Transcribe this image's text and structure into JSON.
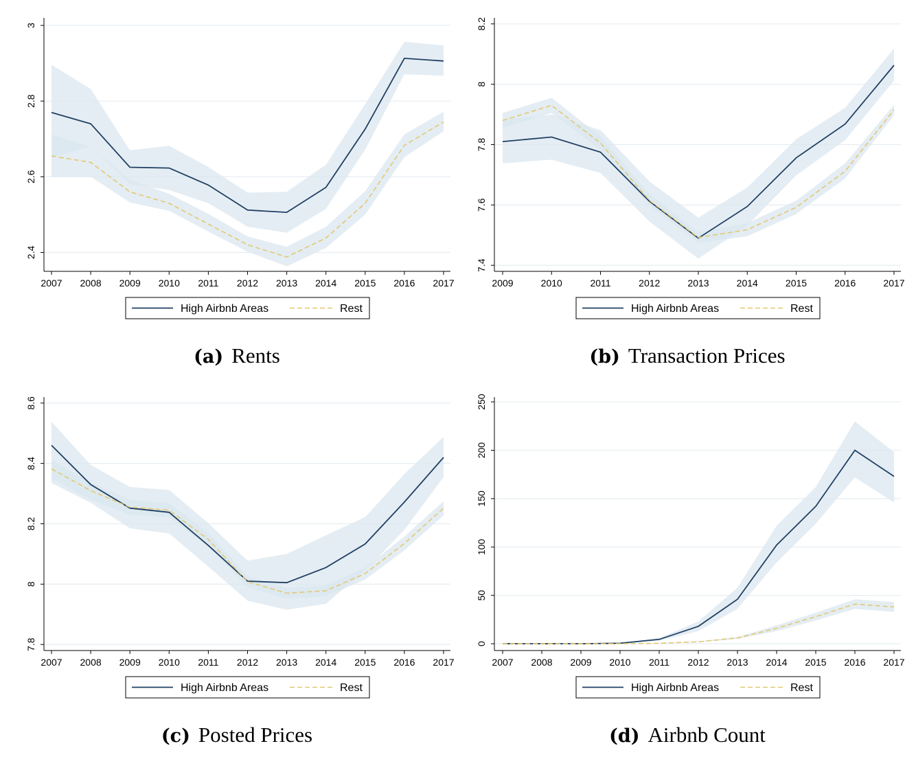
{
  "legend": {
    "high_label": "High Airbnb Areas",
    "rest_label": "Rest"
  },
  "colors": {
    "high": "#1f3f63",
    "rest": "#e3c86e",
    "band": "#dbe7ef",
    "grid": "#e6edf2"
  },
  "chart_data": [
    {
      "type": "line",
      "caption_letter": "(a)",
      "title": "Rents",
      "xlabel": "",
      "ylabel": "",
      "x": [
        "2007",
        "2008",
        "2009",
        "2010",
        "2011",
        "2012",
        "2013",
        "2014",
        "2015",
        "2016",
        "2017"
      ],
      "ylim": [
        2.35,
        3.02
      ],
      "yticks": [
        2.4,
        2.6,
        2.8,
        3
      ],
      "ytick_labels": [
        "2.4",
        "2.6",
        "2.8",
        "3"
      ],
      "grid": true,
      "legend_position": "bottom",
      "series": [
        {
          "name": "High Airbnb Areas",
          "values": [
            2.77,
            2.74,
            2.625,
            2.623,
            2.578,
            2.512,
            2.506,
            2.572,
            2.726,
            2.913,
            2.906
          ],
          "lower": [
            2.65,
            2.68,
            2.58,
            2.565,
            2.53,
            2.468,
            2.452,
            2.515,
            2.672,
            2.871,
            2.867
          ],
          "upper": [
            2.896,
            2.832,
            2.67,
            2.682,
            2.626,
            2.558,
            2.56,
            2.632,
            2.792,
            2.957,
            2.947
          ]
        },
        {
          "name": "Rest",
          "values": [
            2.655,
            2.638,
            2.56,
            2.53,
            2.475,
            2.42,
            2.388,
            2.438,
            2.53,
            2.683,
            2.745
          ],
          "lower": [
            2.6,
            2.6,
            2.532,
            2.51,
            2.455,
            2.402,
            2.363,
            2.412,
            2.5,
            2.652,
            2.72
          ],
          "upper": [
            2.712,
            2.68,
            2.592,
            2.555,
            2.502,
            2.442,
            2.415,
            2.468,
            2.562,
            2.712,
            2.772
          ]
        }
      ]
    },
    {
      "type": "line",
      "caption_letter": "(b)",
      "title": "Transaction Prices",
      "xlabel": "",
      "ylabel": "",
      "x": [
        "2009",
        "2010",
        "2011",
        "2012",
        "2013",
        "2014",
        "2015",
        "2016",
        "2017"
      ],
      "ylim": [
        7.38,
        8.22
      ],
      "yticks": [
        7.4,
        7.6,
        7.8,
        8,
        8.2
      ],
      "ytick_labels": [
        "7.4",
        "7.6",
        "7.8",
        "8",
        "8.2"
      ],
      "grid": true,
      "legend_position": "bottom",
      "series": [
        {
          "name": "High Airbnb Areas",
          "values": [
            7.81,
            7.825,
            7.775,
            7.612,
            7.49,
            7.595,
            7.756,
            7.868,
            8.063
          ],
          "lower": [
            7.738,
            7.75,
            7.706,
            7.545,
            7.422,
            7.532,
            7.698,
            7.815,
            8.012
          ],
          "upper": [
            7.882,
            7.9,
            7.848,
            7.678,
            7.558,
            7.658,
            7.818,
            7.922,
            8.118
          ]
        },
        {
          "name": "Rest",
          "values": [
            7.88,
            7.93,
            7.805,
            7.615,
            7.492,
            7.518,
            7.592,
            7.712,
            7.915
          ],
          "lower": [
            7.855,
            7.905,
            7.782,
            7.598,
            7.474,
            7.496,
            7.57,
            7.688,
            7.898
          ],
          "upper": [
            7.905,
            7.955,
            7.828,
            7.636,
            7.51,
            7.54,
            7.614,
            7.738,
            7.932
          ]
        }
      ]
    },
    {
      "type": "line",
      "caption_letter": "(c)",
      "title": "Posted Prices",
      "xlabel": "",
      "ylabel": "",
      "x": [
        "2007",
        "2008",
        "2009",
        "2010",
        "2011",
        "2012",
        "2013",
        "2014",
        "2015",
        "2016",
        "2017"
      ],
      "ylim": [
        7.78,
        8.62
      ],
      "yticks": [
        7.8,
        8,
        8.2,
        8.4,
        8.6
      ],
      "ytick_labels": [
        "7.8",
        "8",
        "8.2",
        "8.4",
        "8.6"
      ],
      "grid": true,
      "legend_position": "bottom",
      "series": [
        {
          "name": "High Airbnb Areas",
          "values": [
            8.46,
            8.33,
            8.252,
            8.238,
            8.128,
            8.01,
            8.005,
            8.055,
            8.133,
            8.272,
            8.42
          ],
          "lower": [
            8.335,
            8.27,
            8.185,
            8.168,
            8.058,
            7.945,
            7.915,
            7.935,
            8.045,
            8.18,
            8.355
          ],
          "upper": [
            8.538,
            8.395,
            8.322,
            8.312,
            8.202,
            8.078,
            8.1,
            8.162,
            8.222,
            8.365,
            8.488
          ]
        },
        {
          "name": "Rest",
          "values": [
            8.382,
            8.31,
            8.255,
            8.245,
            8.148,
            8.008,
            7.97,
            7.978,
            8.035,
            8.135,
            8.252
          ],
          "lower": [
            8.35,
            8.28,
            8.23,
            8.222,
            8.125,
            7.99,
            7.952,
            7.96,
            8.015,
            8.112,
            8.228
          ],
          "upper": [
            8.412,
            8.338,
            8.28,
            8.268,
            8.17,
            8.026,
            7.988,
            7.996,
            8.055,
            8.158,
            8.275
          ]
        }
      ]
    },
    {
      "type": "line",
      "caption_letter": "(d)",
      "title": "Airbnb Count",
      "xlabel": "",
      "ylabel": "",
      "x": [
        "2007",
        "2008",
        "2009",
        "2010",
        "2011",
        "2012",
        "2013",
        "2014",
        "2015",
        "2016",
        "2017"
      ],
      "ylim": [
        -7,
        255
      ],
      "yticks": [
        0,
        50,
        100,
        150,
        200,
        250
      ],
      "ytick_labels": [
        "0",
        "50",
        "100",
        "150",
        "200",
        "250"
      ],
      "grid": true,
      "legend_position": "bottom",
      "series": [
        {
          "name": "High Airbnb Areas",
          "values": [
            0,
            0,
            0,
            0.5,
            4.5,
            18,
            46,
            102,
            142,
            200,
            173
          ],
          "lower": [
            0,
            0,
            0,
            0.2,
            3,
            13,
            36,
            84,
            124,
            172,
            146
          ],
          "upper": [
            0,
            0,
            0,
            0.8,
            6,
            23,
            58,
            122,
            162,
            230,
            198
          ]
        },
        {
          "name": "Rest",
          "values": [
            0,
            0,
            0,
            0,
            0.5,
            2,
            6,
            16,
            28,
            41,
            38
          ],
          "lower": [
            0,
            0,
            0,
            0,
            0.3,
            1.5,
            5,
            13,
            24,
            36,
            33
          ],
          "upper": [
            0,
            0,
            0,
            0,
            0.7,
            2.5,
            7,
            19,
            32,
            46,
            43
          ]
        }
      ]
    }
  ]
}
